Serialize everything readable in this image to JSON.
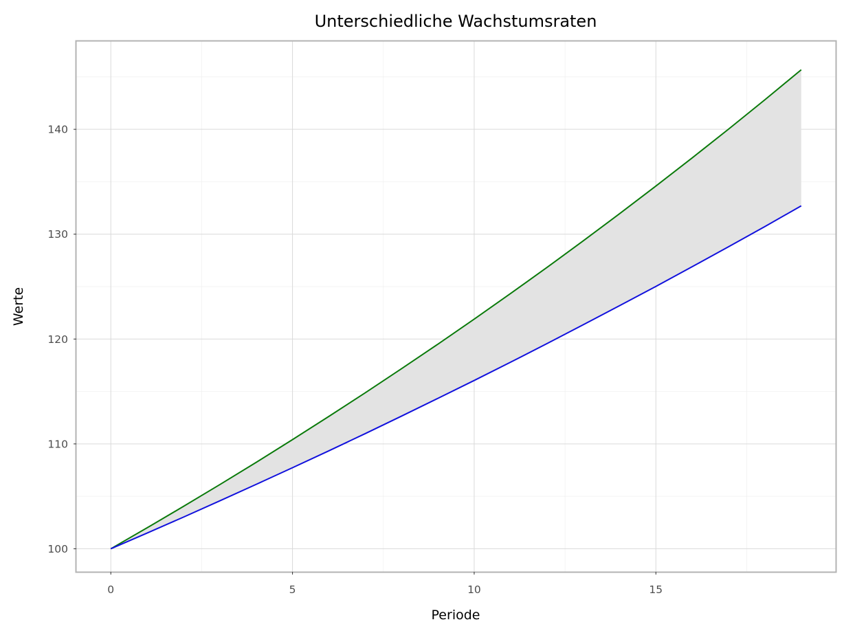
{
  "chart_data": {
    "type": "line",
    "title": "Unterschiedliche Wachstumsraten",
    "xlabel": "Periode",
    "ylabel": "Werte",
    "xlim": [
      -0.95,
      19.95
    ],
    "ylim": [
      97.8,
      148.4
    ],
    "xticks": [
      0,
      5,
      10,
      15
    ],
    "xtick_labels": [
      "0",
      "5",
      "10",
      "15"
    ],
    "yticks": [
      100,
      110,
      120,
      130,
      140
    ],
    "ytick_labels": [
      "100",
      "110",
      "120",
      "130",
      "140"
    ],
    "grid": true,
    "legend": "none",
    "x": [
      0,
      1,
      2,
      3,
      4,
      5,
      6,
      7,
      8,
      9,
      10,
      11,
      12,
      13,
      14,
      15,
      16,
      17,
      18,
      19
    ],
    "series": [
      {
        "color": "#0a7a0a",
        "values": [
          100,
          102,
          104.04,
          106.12,
          108.24,
          110.41,
          112.62,
          114.87,
          117.17,
          119.51,
          121.9,
          124.34,
          126.82,
          129.36,
          131.95,
          134.59,
          137.28,
          140.02,
          142.82,
          145.68
        ]
      },
      {
        "color": "#1010dd",
        "values": [
          100,
          101.5,
          103.02,
          104.57,
          106.14,
          107.73,
          109.34,
          110.98,
          112.65,
          114.34,
          116.05,
          117.79,
          119.56,
          121.36,
          123.18,
          125.02,
          126.9,
          128.8,
          130.73,
          132.7
        ]
      }
    ],
    "fill_between": {
      "color": "#e3e3e3"
    }
  }
}
